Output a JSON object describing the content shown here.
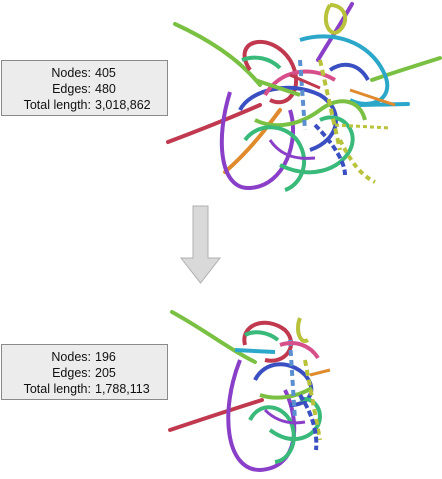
{
  "before": {
    "label_nodes": "Nodes:",
    "label_edges": "Edges:",
    "label_length": "Total length:",
    "nodes": "405",
    "edges": "480",
    "total_length": "3,018,862"
  },
  "after": {
    "label_nodes": "Nodes:",
    "label_edges": "Edges:",
    "label_length": "Total length:",
    "nodes": "196",
    "edges": "205",
    "total_length": "1,788,113"
  },
  "arrow_icon": "down-arrow-icon",
  "arrow_color": "#d9d9d9",
  "arrow_stroke": "#b0b0b0",
  "edge_colors": [
    "#7ac143",
    "#3a4fc2",
    "#c0394f",
    "#8a3fc8",
    "#39b97a",
    "#2aa7c9",
    "#d64f8a",
    "#b8c23a",
    "#e08a2e",
    "#5a8fd0"
  ]
}
